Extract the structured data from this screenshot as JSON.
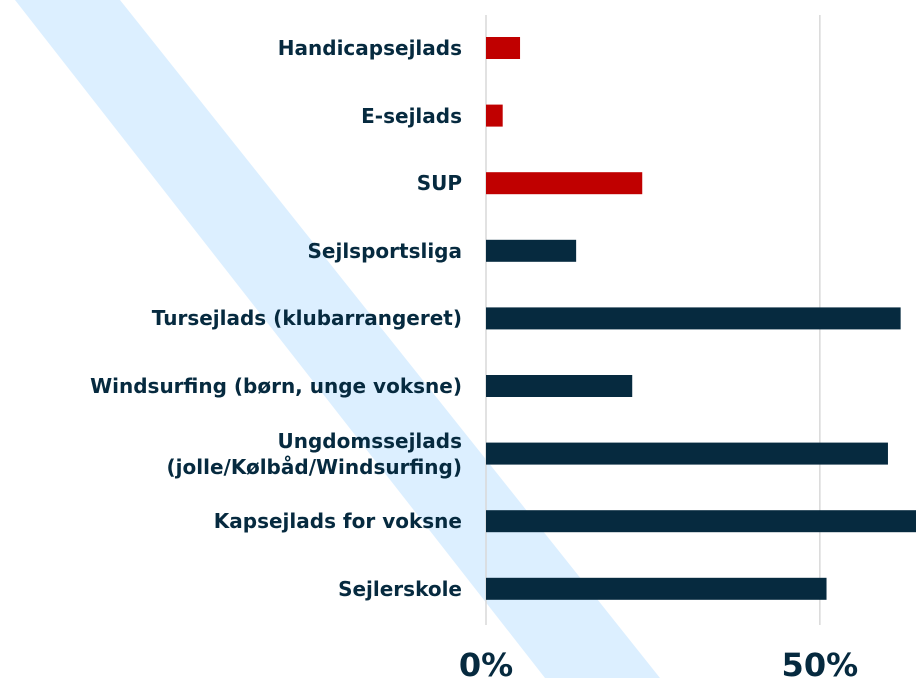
{
  "chart_data": {
    "type": "barh",
    "categories": [
      "Handicapsejlads",
      "E-sejlads",
      "SUP",
      "Sejlsportsliga",
      "Tursejlads (klubarrangeret)",
      "Windsurfing (børn, unge voksne)",
      "Ungdomssejlads\n(jolle/Kølbåd/Windsurfing)",
      "Kapsejlads for voksne",
      "Sejlerskole"
    ],
    "values": [
      5.1,
      2.5,
      23.4,
      13.5,
      62.1,
      21.9,
      60.2,
      66,
      51.0
    ],
    "colors": [
      "#c00000",
      "#c00000",
      "#c00000",
      "#062a3f",
      "#062a3f",
      "#062a3f",
      "#062a3f",
      "#062a3f",
      "#062a3f"
    ],
    "xlim": [
      0,
      64.4
    ],
    "xticks": [
      {
        "value": 0,
        "label": "0%"
      },
      {
        "value": 50,
        "label": "50%"
      }
    ],
    "grid": true
  }
}
